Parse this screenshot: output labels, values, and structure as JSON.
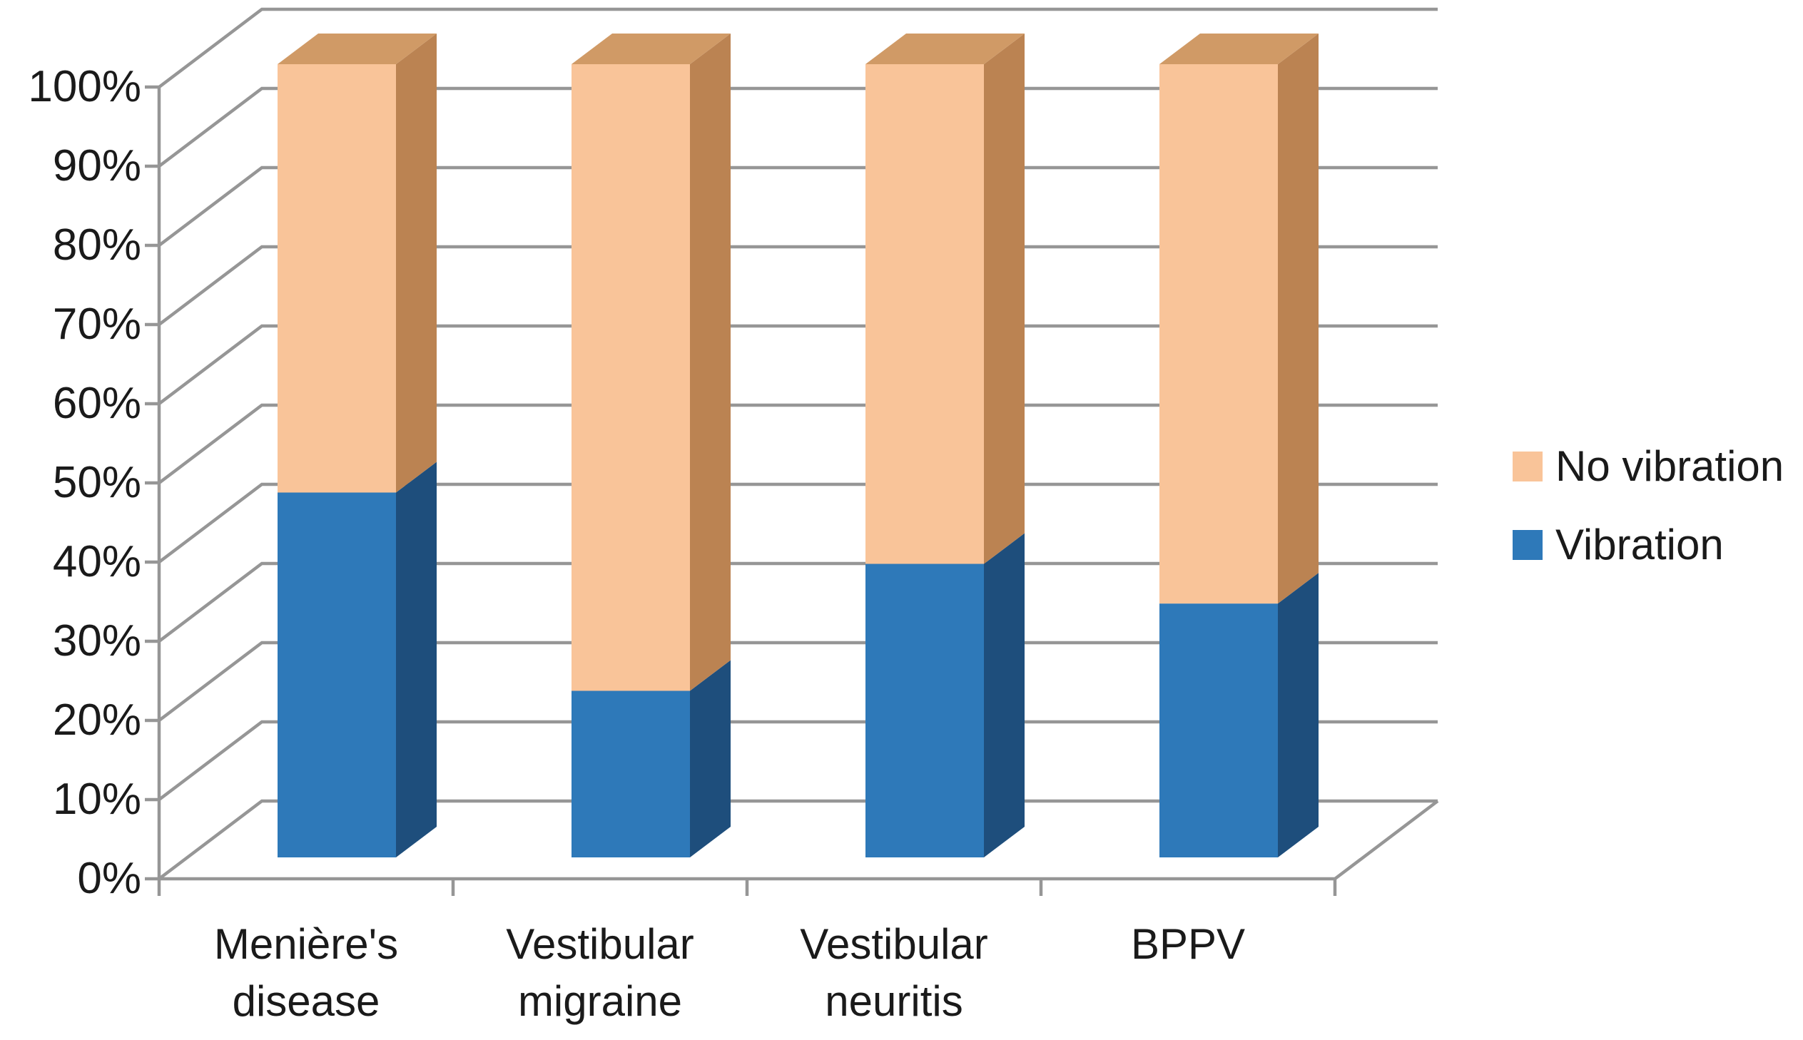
{
  "chart_data": {
    "type": "bar",
    "variant": "3d-100percent-stacked-column",
    "title": "",
    "xlabel": "",
    "ylabel": "",
    "categories": [
      "Menière's disease",
      "Vestibular migraine",
      "Vestibular neuritis",
      "BPPV"
    ],
    "categories_lines": [
      [
        "Menière's",
        "disease"
      ],
      [
        "Vestibular",
        "migraine"
      ],
      [
        "Vestibular",
        "neuritis"
      ],
      [
        "BPPV",
        ""
      ]
    ],
    "series": [
      {
        "name": "Vibration",
        "values": [
          46,
          21,
          37,
          32
        ],
        "color": "#2E79B9",
        "side_color": "#1E4E7C"
      },
      {
        "name": "No vibration",
        "values": [
          54,
          79,
          63,
          68
        ],
        "color": "#F9C499",
        "side_color": "#BB8352",
        "top_color": "#D09A66"
      }
    ],
    "stack_order_bottom_to_top": [
      "Vibration",
      "No vibration"
    ],
    "y_ticks": [
      "0%",
      "10%",
      "20%",
      "30%",
      "40%",
      "50%",
      "60%",
      "70%",
      "80%",
      "90%",
      "100%"
    ],
    "ylim": [
      0,
      100
    ],
    "grid": true,
    "legend_position": "right",
    "legend": [
      {
        "label": "No vibration",
        "color": "#F9C499"
      },
      {
        "label": "Vibration",
        "color": "#2E79B9"
      }
    ]
  },
  "styles": {
    "grid_color": "#969696",
    "text_color": "#1a1a1a",
    "background": "#ffffff"
  }
}
